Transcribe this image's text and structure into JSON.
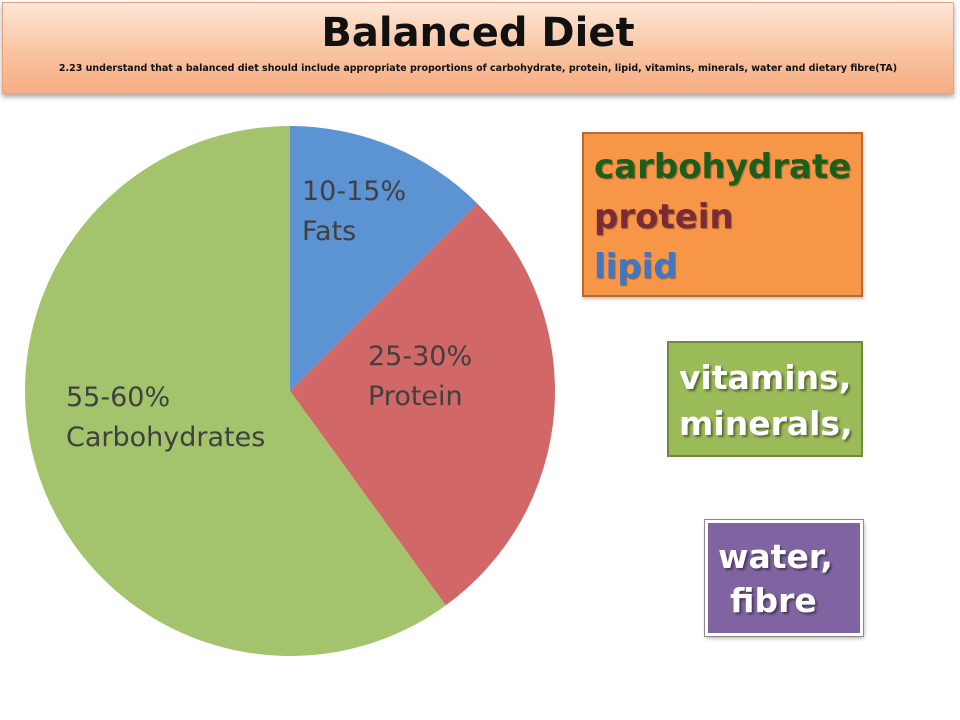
{
  "header": {
    "title": "Balanced Diet",
    "subtitle": "2.23 understand that a balanced diet should include appropriate proportions of carbohydrate, protein, lipid, vitamins, minerals, water and dietary fibre(TA)"
  },
  "chart_data": {
    "type": "pie",
    "title": "",
    "slices": [
      {
        "range": "10-15%",
        "name": "Fats",
        "value": 12.5,
        "color": "#5b93d3"
      },
      {
        "range": "25-30%",
        "name": "Protein",
        "value": 27.5,
        "color": "#d16767"
      },
      {
        "range": "55-60%",
        "name": "Carbohydrates",
        "value": 60,
        "color": "#a3c46c"
      }
    ],
    "start": "12 o'clock, clockwise",
    "legend": "none"
  },
  "boxes": {
    "macro": {
      "carbohydrate": "carbohydrate",
      "protein": "protein",
      "lipid": "lipid",
      "color": "#f79646"
    },
    "micro": {
      "line1": "vitamins,",
      "line2": "minerals,",
      "color": "#9bbb59"
    },
    "other": {
      "line1": "water,",
      "line2": "fibre",
      "color": "#8064a2"
    }
  }
}
